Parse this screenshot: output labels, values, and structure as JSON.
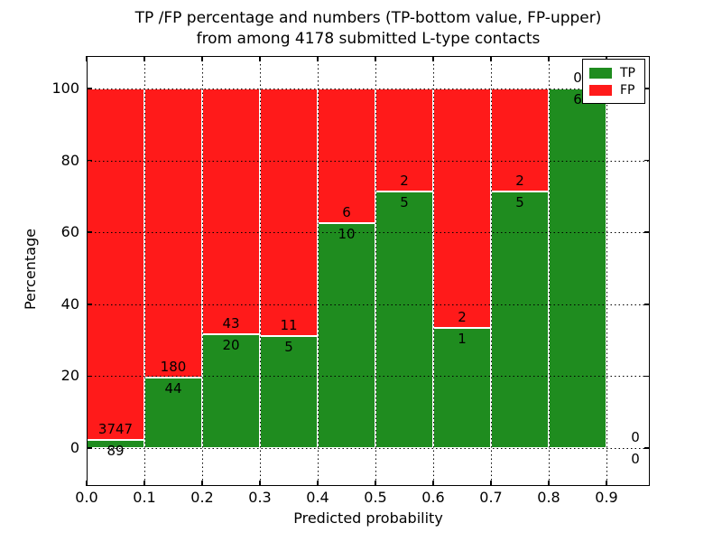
{
  "chart_data": {
    "type": "bar",
    "stacked": true,
    "normalized": "percent",
    "title_lines": [
      "TP /FP percentage and numbers (TP-bottom value, FP-upper)",
      "from among 4178 submitted L-type contacts"
    ],
    "xlabel": "Predicted probability",
    "ylabel": "Percentage",
    "categories": [
      "0.0-0.1",
      "0.1-0.2",
      "0.2-0.3",
      "0.3-0.4",
      "0.4-0.5",
      "0.5-0.6",
      "0.6-0.7",
      "0.7-0.8",
      "0.8-0.9",
      "0.9-1.0"
    ],
    "series": [
      {
        "name": "TP",
        "color": "#1f8c1f",
        "values": [
          89,
          44,
          20,
          5,
          10,
          5,
          1,
          5,
          6,
          0
        ]
      },
      {
        "name": "FP",
        "color": "#ff1a1a",
        "values": [
          3747,
          180,
          43,
          11,
          6,
          2,
          2,
          2,
          0,
          0
        ]
      }
    ],
    "tp_percent": [
      2.32,
      19.64,
      31.75,
      31.25,
      62.5,
      71.43,
      33.33,
      71.43,
      100.0,
      0.0
    ],
    "x_ticks": [
      "0.0",
      "0.1",
      "0.2",
      "0.3",
      "0.4",
      "0.5",
      "0.6",
      "0.7",
      "0.8",
      "0.9"
    ],
    "y_ticks": [
      0,
      20,
      40,
      60,
      80,
      100
    ],
    "xlim": [
      0.0,
      0.975
    ],
    "ylim": [
      -11,
      109
    ],
    "grid": "dotted",
    "legend_position": "upper right",
    "legend": [
      {
        "label": "TP",
        "color": "#1f8c1f"
      },
      {
        "label": "FP",
        "color": "#ff1a1a"
      }
    ],
    "colors": {
      "bar_edge": "#ffffff",
      "grid": "#000000",
      "axis": "#000000",
      "background": "#ffffff"
    }
  }
}
